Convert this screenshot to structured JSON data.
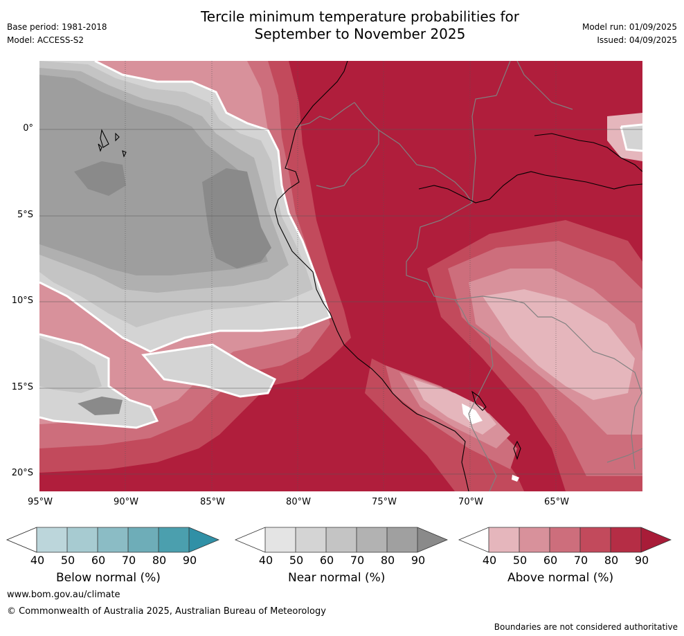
{
  "header": {
    "title_line1": "Tercile minimum temperature probabilities for",
    "title_line2": "September to November 2025",
    "base_period": "Base period: 1981-2018",
    "model": "Model: ACCESS-S2",
    "model_run": "Model run: 01/09/2025",
    "issued": "Issued: 04/09/2025"
  },
  "map": {
    "lat_labels": [
      "0°",
      "5°S",
      "10°S",
      "15°S",
      "20°S"
    ],
    "lon_labels": [
      "95°W",
      "90°W",
      "85°W",
      "80°W",
      "75°W",
      "70°W",
      "65°W"
    ],
    "colors": {
      "above_90": "#b01e3c",
      "above_80": "#c24a5c",
      "above_70": "#cd6e7c",
      "above_60": "#d8919b",
      "above_50": "#e5b6bc",
      "near_50": "#d4d4d4",
      "near_60": "#c4c4c4",
      "near_70": "#b0b0b0",
      "near_80": "#9e9e9e",
      "near_90": "#8a8a8a",
      "country_border": "#808080",
      "coastline": "#000000"
    }
  },
  "colorbars": {
    "below": {
      "label": "Below normal (%)",
      "ticks": [
        "40",
        "50",
        "60",
        "70",
        "80",
        "90"
      ],
      "colors": [
        "#ffffff",
        "#bcd6db",
        "#a7cbd1",
        "#8bbcc5",
        "#6eadb8",
        "#4b9fae",
        "#3090a6"
      ]
    },
    "near": {
      "label": "Near normal (%)",
      "ticks": [
        "40",
        "50",
        "60",
        "70",
        "80",
        "90"
      ],
      "colors": [
        "#ffffff",
        "#e4e4e4",
        "#d4d4d4",
        "#c4c4c4",
        "#b2b2b2",
        "#a0a0a0",
        "#8a8a8a"
      ]
    },
    "above": {
      "label": "Above normal (%)",
      "ticks": [
        "40",
        "50",
        "60",
        "70",
        "80",
        "90"
      ],
      "colors": [
        "#ffffff",
        "#e5b6bc",
        "#d8919b",
        "#cd6e7c",
        "#c24a5c",
        "#b52d45",
        "#a81c38"
      ]
    }
  },
  "footer": {
    "website": "www.bom.gov.au/climate",
    "copyright": "© Commonwealth of Australia 2025, Australian Bureau of Meteorology",
    "disclaimer": "Boundaries are not considered authoritative"
  }
}
